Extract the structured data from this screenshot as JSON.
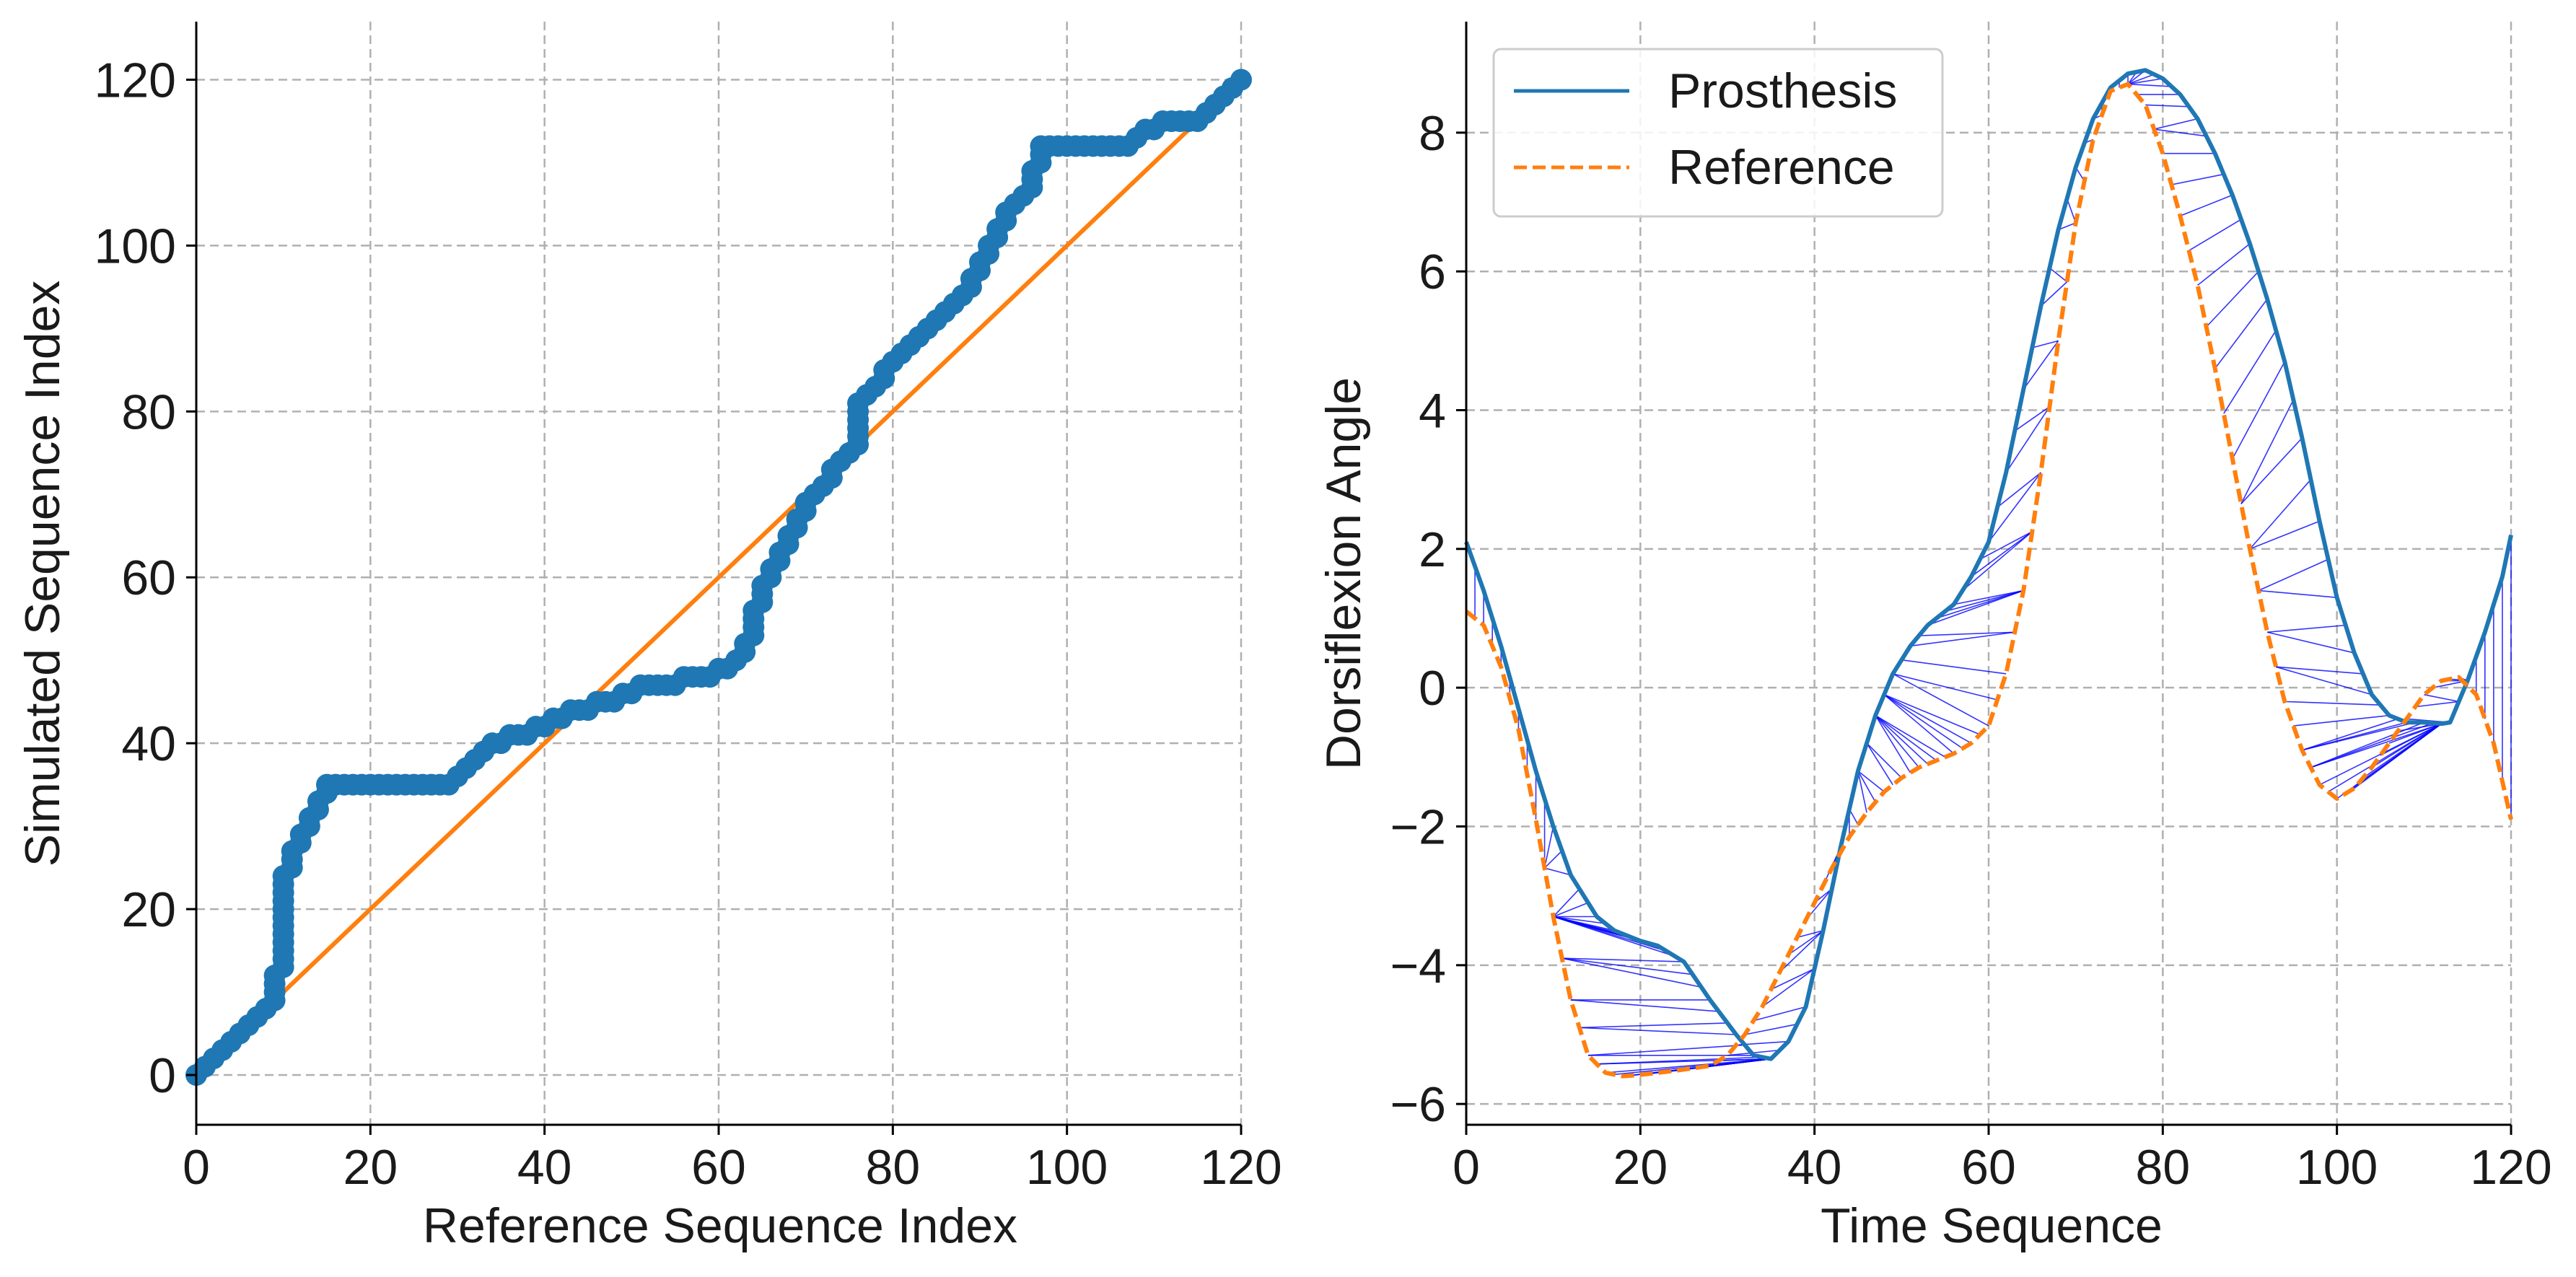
{
  "chart_data": [
    {
      "type": "scatter",
      "xlabel": "Reference Sequence Index",
      "ylabel": "Simulated Sequence Index",
      "xlim": [
        0,
        120
      ],
      "ylim": [
        -6,
        127
      ],
      "xticks": [
        0,
        20,
        40,
        60,
        80,
        100,
        120
      ],
      "yticks": [
        0,
        20,
        40,
        60,
        80,
        100,
        120
      ],
      "grid": true,
      "path_color": "#1f77b4",
      "diagonal_color": "#ff7f0e",
      "warping_path": [
        [
          0,
          0
        ],
        [
          8,
          8
        ],
        [
          9,
          12
        ],
        [
          10,
          15
        ],
        [
          10,
          24
        ],
        [
          11,
          27
        ],
        [
          12,
          29
        ],
        [
          13,
          31
        ],
        [
          14,
          33
        ],
        [
          15,
          35
        ],
        [
          29,
          35
        ],
        [
          30,
          36
        ],
        [
          32,
          38
        ],
        [
          35,
          40
        ],
        [
          38,
          41
        ],
        [
          40,
          42
        ],
        [
          42,
          43
        ],
        [
          45,
          44
        ],
        [
          48,
          45
        ],
        [
          50,
          46
        ],
        [
          55,
          47
        ],
        [
          59,
          48
        ],
        [
          61,
          49
        ],
        [
          63,
          52
        ],
        [
          64,
          56
        ],
        [
          65,
          59
        ],
        [
          66,
          61
        ],
        [
          67,
          63
        ],
        [
          68,
          65
        ],
        [
          69,
          67
        ],
        [
          70,
          69
        ],
        [
          71,
          70
        ],
        [
          72,
          71
        ],
        [
          73,
          73
        ],
        [
          74,
          74
        ],
        [
          75,
          75
        ],
        [
          76,
          76
        ],
        [
          76,
          81
        ],
        [
          77,
          82
        ],
        [
          78,
          83
        ],
        [
          79,
          85
        ],
        [
          80,
          86
        ],
        [
          82,
          88
        ],
        [
          84,
          90
        ],
        [
          86,
          92
        ],
        [
          88,
          94
        ],
        [
          89,
          96
        ],
        [
          90,
          98
        ],
        [
          91,
          100
        ],
        [
          92,
          102
        ],
        [
          93,
          104
        ],
        [
          95,
          106
        ],
        [
          96,
          109
        ],
        [
          97,
          111
        ],
        [
          97,
          112
        ],
        [
          107,
          112
        ],
        [
          108,
          113
        ],
        [
          110,
          114
        ],
        [
          111,
          115
        ],
        [
          115,
          115
        ],
        [
          116,
          116
        ],
        [
          117,
          117
        ],
        [
          118,
          118
        ],
        [
          119,
          119
        ],
        [
          120,
          120
        ]
      ],
      "diagonal": [
        [
          0,
          0
        ],
        [
          120,
          120
        ]
      ]
    },
    {
      "type": "line",
      "xlabel": "Time Sequence",
      "ylabel": "Dorsiflexion Angle",
      "xlim": [
        0,
        120
      ],
      "ylim": [
        -6.3,
        9.6
      ],
      "xticks": [
        0,
        20,
        40,
        60,
        80,
        100,
        120
      ],
      "yticks": [
        -6,
        -4,
        -2,
        0,
        2,
        4,
        6,
        8
      ],
      "grid": true,
      "legend_position": "top-left",
      "alignment_color": "#0000ff",
      "series": [
        {
          "name": "Prosthesis",
          "color": "#1f77b4",
          "dash": "solid",
          "points": [
            [
              0,
              2.1
            ],
            [
              2,
              1.4
            ],
            [
              4,
              0.6
            ],
            [
              6,
              -0.3
            ],
            [
              8,
              -1.2
            ],
            [
              10,
              -2.0
            ],
            [
              12,
              -2.7
            ],
            [
              15,
              -3.3
            ],
            [
              17,
              -3.5
            ],
            [
              20,
              -3.65
            ],
            [
              22,
              -3.72
            ],
            [
              25,
              -3.95
            ],
            [
              28,
              -4.5
            ],
            [
              31,
              -5.0
            ],
            [
              33,
              -5.3
            ],
            [
              35,
              -5.35
            ],
            [
              37,
              -5.1
            ],
            [
              39,
              -4.6
            ],
            [
              41,
              -3.5
            ],
            [
              43,
              -2.3
            ],
            [
              45,
              -1.2
            ],
            [
              47,
              -0.4
            ],
            [
              49,
              0.2
            ],
            [
              51,
              0.6
            ],
            [
              53,
              0.9
            ],
            [
              56,
              1.2
            ],
            [
              58,
              1.6
            ],
            [
              60,
              2.1
            ],
            [
              62,
              3.1
            ],
            [
              64,
              4.3
            ],
            [
              66,
              5.5
            ],
            [
              68,
              6.6
            ],
            [
              70,
              7.5
            ],
            [
              72,
              8.2
            ],
            [
              74,
              8.65
            ],
            [
              76,
              8.85
            ],
            [
              78,
              8.9
            ],
            [
              80,
              8.78
            ],
            [
              82,
              8.55
            ],
            [
              84,
              8.2
            ],
            [
              86,
              7.7
            ],
            [
              88,
              7.1
            ],
            [
              90,
              6.4
            ],
            [
              92,
              5.6
            ],
            [
              94,
              4.7
            ],
            [
              96,
              3.6
            ],
            [
              98,
              2.4
            ],
            [
              100,
              1.3
            ],
            [
              102,
              0.5
            ],
            [
              104,
              -0.1
            ],
            [
              106,
              -0.4
            ],
            [
              108,
              -0.5
            ],
            [
              110,
              -0.5
            ],
            [
              112,
              -0.52
            ],
            [
              113,
              -0.5
            ],
            [
              115,
              0.1
            ],
            [
              117,
              0.8
            ],
            [
              119,
              1.6
            ],
            [
              120,
              2.2
            ]
          ]
        },
        {
          "name": "Reference",
          "color": "#ff7f0e",
          "dash": "dashed",
          "points": [
            [
              0,
              1.1
            ],
            [
              2,
              0.9
            ],
            [
              4,
              0.3
            ],
            [
              6,
              -0.6
            ],
            [
              8,
              -1.9
            ],
            [
              10,
              -3.3
            ],
            [
              12,
              -4.5
            ],
            [
              14,
              -5.3
            ],
            [
              16,
              -5.55
            ],
            [
              18,
              -5.6
            ],
            [
              20,
              -5.58
            ],
            [
              24,
              -5.52
            ],
            [
              28,
              -5.45
            ],
            [
              30,
              -5.3
            ],
            [
              32,
              -5.0
            ],
            [
              34,
              -4.6
            ],
            [
              36,
              -4.1
            ],
            [
              38,
              -3.6
            ],
            [
              40,
              -3.1
            ],
            [
              42,
              -2.6
            ],
            [
              44,
              -2.15
            ],
            [
              46,
              -1.8
            ],
            [
              48,
              -1.5
            ],
            [
              50,
              -1.3
            ],
            [
              52,
              -1.15
            ],
            [
              54,
              -1.05
            ],
            [
              56,
              -0.95
            ],
            [
              58,
              -0.8
            ],
            [
              60,
              -0.55
            ],
            [
              62,
              0.2
            ],
            [
              64,
              1.4
            ],
            [
              66,
              3.1
            ],
            [
              68,
              5.0
            ],
            [
              70,
              6.7
            ],
            [
              72,
              7.9
            ],
            [
              74,
              8.6
            ],
            [
              76,
              8.7
            ],
            [
              78,
              8.4
            ],
            [
              80,
              7.7
            ],
            [
              82,
              6.8
            ],
            [
              84,
              5.8
            ],
            [
              86,
              4.6
            ],
            [
              88,
              3.3
            ],
            [
              90,
              2.0
            ],
            [
              92,
              0.8
            ],
            [
              94,
              -0.2
            ],
            [
              96,
              -0.9
            ],
            [
              98,
              -1.4
            ],
            [
              100,
              -1.6
            ],
            [
              102,
              -1.45
            ],
            [
              104,
              -1.15
            ],
            [
              106,
              -0.8
            ],
            [
              108,
              -0.45
            ],
            [
              110,
              -0.1
            ],
            [
              112,
              0.1
            ],
            [
              114,
              0.15
            ],
            [
              116,
              -0.1
            ],
            [
              118,
              -0.8
            ],
            [
              120,
              -1.9
            ]
          ]
        }
      ]
    }
  ]
}
